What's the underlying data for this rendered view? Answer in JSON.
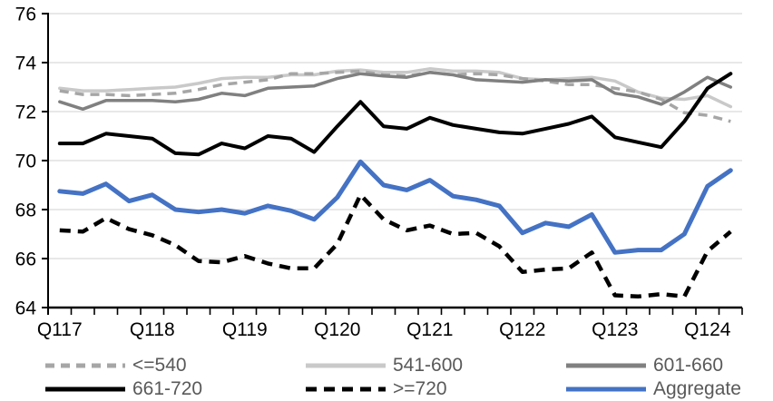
{
  "chart_data": {
    "type": "line",
    "title": "",
    "n_points": 30,
    "points_per_year": 4,
    "x_axis": {
      "tick_labels": [
        "Q117",
        "Q118",
        "Q119",
        "Q120",
        "Q121",
        "Q122",
        "Q123",
        "Q124"
      ],
      "label_every_n_points": 4
    },
    "y_axis": {
      "min": 64,
      "max": 76,
      "tick_interval": 2,
      "tick_labels": [
        "64",
        "66",
        "68",
        "70",
        "72",
        "74",
        "76"
      ]
    },
    "grid": true,
    "gridline_color": "#d9d9d9",
    "axis_color": "#000000",
    "axis_label_color": "#000000",
    "legend_position": "bottom",
    "legend_text_color": "#595959",
    "series": [
      {
        "name": "<=540",
        "color": "#a6a6a6",
        "dash": "10 7",
        "width": 3.5,
        "values": [
          72.85,
          72.7,
          72.7,
          72.65,
          72.7,
          72.75,
          72.9,
          73.1,
          73.2,
          73.3,
          73.55,
          73.55,
          73.6,
          73.65,
          73.5,
          73.45,
          73.6,
          73.5,
          73.55,
          73.5,
          73.35,
          73.25,
          73.1,
          73.1,
          72.95,
          72.8,
          72.5,
          71.95,
          71.85,
          71.6
        ]
      },
      {
        "name": "541-600",
        "color": "#c9c9c9",
        "dash": null,
        "width": 3.5,
        "values": [
          72.95,
          72.85,
          72.85,
          72.9,
          72.95,
          73.0,
          73.15,
          73.35,
          73.4,
          73.4,
          73.5,
          73.5,
          73.65,
          73.7,
          73.6,
          73.6,
          73.75,
          73.65,
          73.65,
          73.6,
          73.35,
          73.3,
          73.35,
          73.4,
          73.25,
          72.8,
          72.55,
          72.5,
          72.65,
          72.2
        ]
      },
      {
        "name": "601-660",
        "color": "#808080",
        "dash": null,
        "width": 3.5,
        "values": [
          72.4,
          72.1,
          72.45,
          72.45,
          72.45,
          72.4,
          72.5,
          72.75,
          72.65,
          72.95,
          73.0,
          73.05,
          73.35,
          73.55,
          73.45,
          73.4,
          73.6,
          73.5,
          73.3,
          73.25,
          73.2,
          73.3,
          73.25,
          73.3,
          72.75,
          72.6,
          72.3,
          72.8,
          73.4,
          73.0
        ]
      },
      {
        "name": "661-720",
        "color": "#000000",
        "dash": null,
        "width": 4,
        "values": [
          70.7,
          70.7,
          71.1,
          71.0,
          70.9,
          70.3,
          70.25,
          70.7,
          70.5,
          71.0,
          70.9,
          70.35,
          71.4,
          72.4,
          71.4,
          71.3,
          71.75,
          71.45,
          71.3,
          71.15,
          71.1,
          71.3,
          71.5,
          71.8,
          70.95,
          70.75,
          70.55,
          71.6,
          72.95,
          73.55
        ]
      },
      {
        "name": ">=720",
        "color": "#000000",
        "dash": "12 8",
        "width": 4.5,
        "values": [
          67.15,
          67.1,
          67.65,
          67.2,
          66.95,
          66.55,
          65.9,
          65.85,
          66.1,
          65.8,
          65.6,
          65.6,
          66.6,
          68.6,
          67.6,
          67.15,
          67.35,
          67.0,
          67.05,
          66.5,
          65.45,
          65.55,
          65.6,
          66.25,
          64.5,
          64.45,
          64.55,
          64.45,
          66.3,
          67.1
        ]
      },
      {
        "name": "Aggregate",
        "color": "#4472c4",
        "dash": null,
        "width": 5,
        "values": [
          68.75,
          68.65,
          69.05,
          68.35,
          68.6,
          68.0,
          67.9,
          68.0,
          67.85,
          68.15,
          67.95,
          67.6,
          68.5,
          69.95,
          69.0,
          68.8,
          69.2,
          68.55,
          68.4,
          68.15,
          67.05,
          67.45,
          67.3,
          67.8,
          66.25,
          66.35,
          66.35,
          67.0,
          68.95,
          69.6
        ]
      }
    ],
    "draw_order": [
      1,
      0,
      2,
      3,
      4,
      5
    ]
  }
}
